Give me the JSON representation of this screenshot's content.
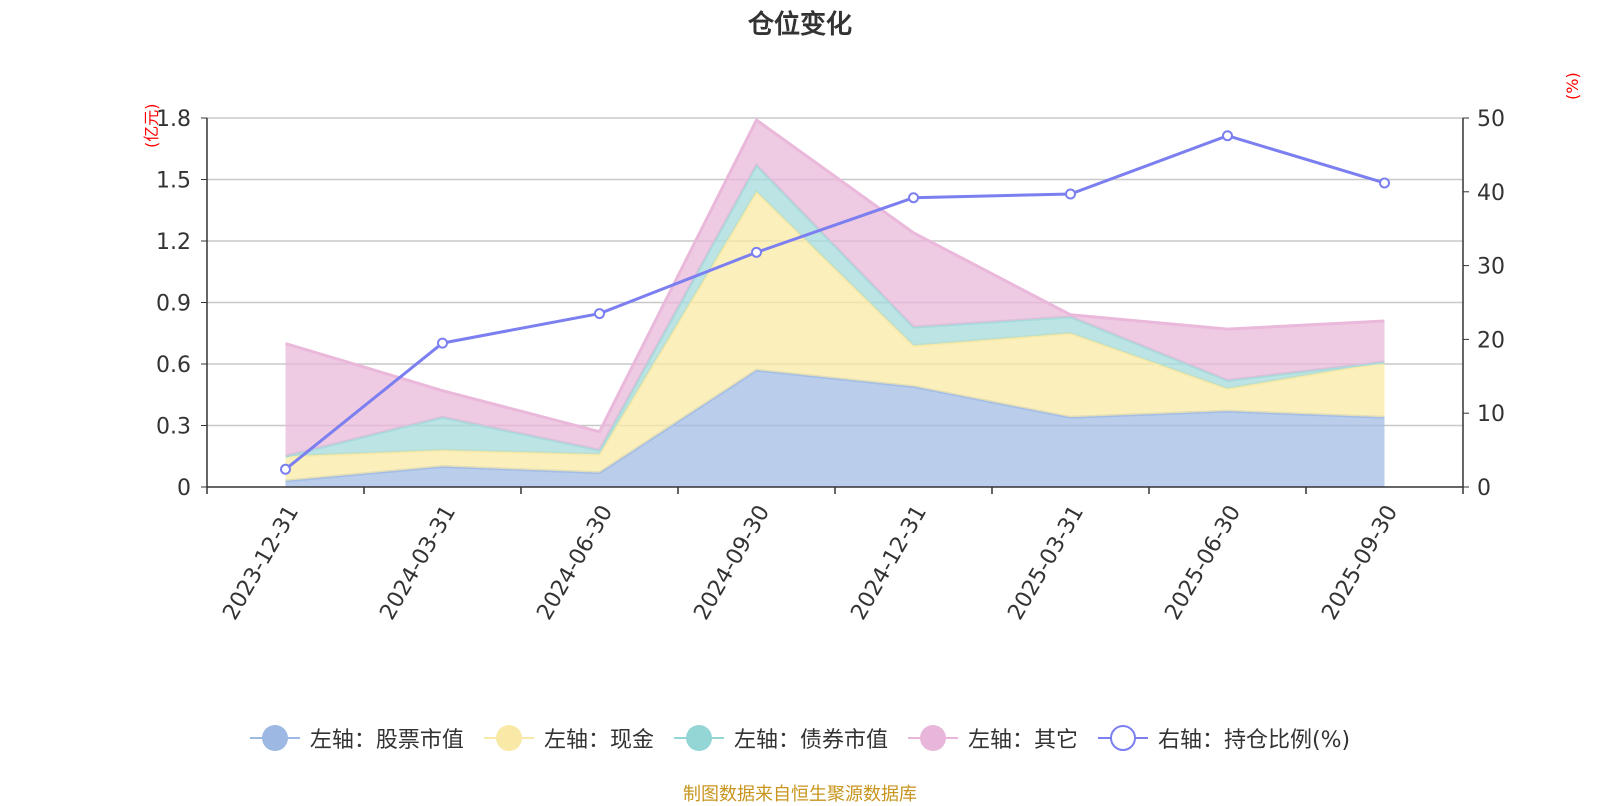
{
  "chart_data": {
    "type": "area",
    "title": "仓位变化",
    "left_axis_unit": "(亿元)",
    "right_axis_unit": "(%)",
    "categories": [
      "2023-12-31",
      "2024-03-31",
      "2024-06-30",
      "2024-09-30",
      "2024-12-31",
      "2025-03-31",
      "2025-06-30",
      "2025-09-30"
    ],
    "left_axis": {
      "min": 0,
      "max": 1.8,
      "ticks": [
        "0",
        "0.3",
        "0.6",
        "0.9",
        "1.2",
        "1.5",
        "1.8"
      ]
    },
    "right_axis": {
      "min": 0,
      "max": 50,
      "ticks": [
        "0",
        "10",
        "20",
        "30",
        "40",
        "50"
      ]
    },
    "stacked": true,
    "series": [
      {
        "name": "左轴：股票市值",
        "axis": "left",
        "type": "area",
        "color": "#a3bde6",
        "values": [
          0.03,
          0.1,
          0.07,
          0.57,
          0.49,
          0.34,
          0.37,
          0.34
        ]
      },
      {
        "name": "左轴：现金",
        "axis": "left",
        "type": "area",
        "color": "#f9e9a6",
        "values": [
          0.12,
          0.08,
          0.09,
          0.87,
          0.2,
          0.41,
          0.11,
          0.27
        ]
      },
      {
        "name": "左轴：债券市值",
        "axis": "left",
        "type": "area",
        "color": "#a6dbdc",
        "values": [
          0.0,
          0.16,
          0.02,
          0.13,
          0.09,
          0.08,
          0.04,
          0.0
        ]
      },
      {
        "name": "左轴：其它",
        "axis": "left",
        "type": "area",
        "color": "#e9b8da",
        "values": [
          0.55,
          0.13,
          0.09,
          0.22,
          0.46,
          0.01,
          0.25,
          0.2
        ]
      },
      {
        "name": "右轴：持仓比例(%)",
        "axis": "right",
        "type": "line",
        "color": "#7b7ff0",
        "values": [
          2.4,
          19.5,
          23.5,
          31.8,
          39.2,
          39.7,
          47.6,
          41.2
        ]
      }
    ]
  },
  "legend": [
    {
      "label": "左轴：股票市值",
      "color": "#9db8e2",
      "hollow": false
    },
    {
      "label": "左轴：现金",
      "color": "#f9e9a6",
      "hollow": false
    },
    {
      "label": "左轴：债券市值",
      "color": "#94d5d6",
      "hollow": false
    },
    {
      "label": "左轴：其它",
      "color": "#e8b6da",
      "hollow": false
    },
    {
      "label": "右轴：持仓比例(%)",
      "color": "#7b7ff0",
      "hollow": true
    }
  ],
  "source": "制图数据来自恒生聚源数据库"
}
